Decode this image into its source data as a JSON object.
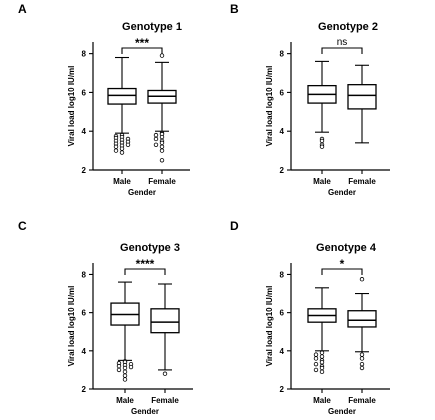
{
  "chart_data": [
    {
      "type": "box",
      "panel": "A",
      "title": "Genotype 1",
      "xlabel": "Gender",
      "ylabel": "Viral load log10 IU/ml",
      "ylim": [
        2,
        8.6
      ],
      "yticks": [
        "2",
        "4",
        "6",
        "8"
      ],
      "categories": [
        "Male",
        "Female"
      ],
      "significance": "***",
      "boxes": [
        {
          "category": "Male",
          "whisker_low": 3.9,
          "q1": 5.4,
          "median": 5.85,
          "q3": 6.2,
          "whisker_high": 7.8,
          "outliers": [
            3.8,
            3.75,
            3.7,
            3.65,
            3.6,
            3.55,
            3.5,
            3.45,
            3.4,
            3.35,
            3.3,
            3.25,
            3.2,
            3.1,
            3.0,
            2.9
          ]
        },
        {
          "category": "Female",
          "whisker_low": 4.0,
          "q1": 5.45,
          "median": 5.8,
          "q3": 6.1,
          "whisker_high": 7.55,
          "outliers": [
            3.9,
            3.85,
            3.8,
            3.7,
            3.6,
            3.5,
            3.4,
            3.3,
            3.2,
            3.0,
            2.5,
            7.9
          ]
        }
      ]
    },
    {
      "type": "box",
      "panel": "B",
      "title": "Genotype 2",
      "xlabel": "Gender",
      "ylabel": "Viral load log10 IU/ml",
      "ylim": [
        2,
        8.6
      ],
      "yticks": [
        "2",
        "4",
        "6",
        "8"
      ],
      "categories": [
        "Male",
        "Female"
      ],
      "significance": "ns",
      "boxes": [
        {
          "category": "Male",
          "whisker_low": 3.95,
          "q1": 5.45,
          "median": 5.9,
          "q3": 6.35,
          "whisker_high": 7.6,
          "outliers": [
            3.6,
            3.5,
            3.3,
            3.2
          ]
        },
        {
          "category": "Female",
          "whisker_low": 3.4,
          "q1": 5.15,
          "median": 5.85,
          "q3": 6.4,
          "whisker_high": 7.4,
          "outliers": []
        }
      ]
    },
    {
      "type": "box",
      "panel": "C",
      "title": "Genotype 3",
      "xlabel": "Gender",
      "ylabel": "Viral load log10 IU/ml",
      "ylim": [
        2,
        8.6
      ],
      "yticks": [
        "2",
        "4",
        "6",
        "8"
      ],
      "categories": [
        "Male",
        "Female"
      ],
      "significance": "****",
      "boxes": [
        {
          "category": "Male",
          "whisker_low": 3.5,
          "q1": 5.35,
          "median": 5.9,
          "q3": 6.5,
          "whisker_high": 7.6,
          "outliers": [
            3.45,
            3.4,
            3.35,
            3.3,
            3.25,
            3.2,
            3.15,
            3.1,
            3.0,
            2.9,
            2.7,
            2.5
          ]
        },
        {
          "category": "Female",
          "whisker_low": 3.0,
          "q1": 4.95,
          "median": 5.5,
          "q3": 6.2,
          "whisker_high": 7.5,
          "outliers": [
            2.8
          ]
        }
      ]
    },
    {
      "type": "box",
      "panel": "D",
      "title": "Genotype 4",
      "xlabel": "Gender",
      "ylabel": "Viral load log10 IU/ml",
      "ylim": [
        2,
        8.6
      ],
      "yticks": [
        "2",
        "4",
        "6",
        "8"
      ],
      "categories": [
        "Male",
        "Female"
      ],
      "significance": "*",
      "boxes": [
        {
          "category": "Male",
          "whisker_low": 4.0,
          "q1": 5.5,
          "median": 5.85,
          "q3": 6.2,
          "whisker_high": 7.3,
          "outliers": [
            3.9,
            3.8,
            3.7,
            3.6,
            3.5,
            3.4,
            3.3,
            3.2,
            3.1,
            3.0,
            2.9
          ]
        },
        {
          "category": "Female",
          "whisker_low": 3.95,
          "q1": 5.25,
          "median": 5.6,
          "q3": 6.1,
          "whisker_high": 7.0,
          "outliers": [
            3.8,
            3.6,
            3.3,
            3.1,
            7.75
          ]
        }
      ]
    }
  ]
}
